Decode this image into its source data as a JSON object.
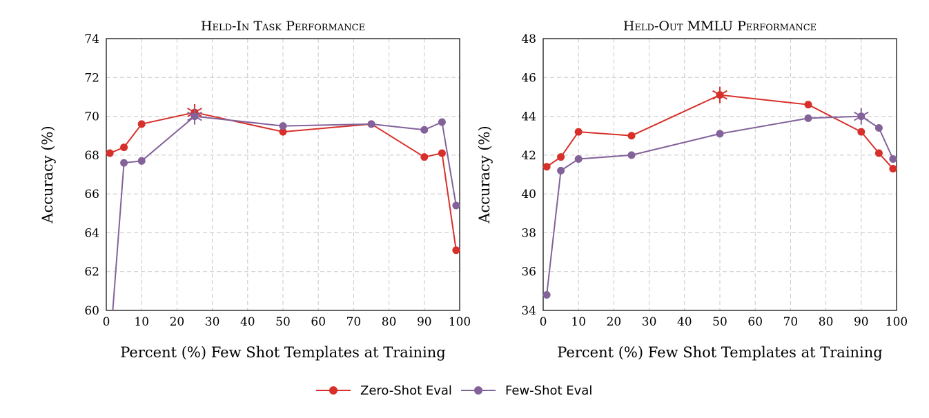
{
  "legend": {
    "zero_label": "Zero-Shot Eval",
    "few_label": "Few-Shot Eval"
  },
  "colors": {
    "zero": "#d7302a",
    "few": "#83629a"
  },
  "chart_data": [
    {
      "type": "line",
      "title": "Held-In Task Performance",
      "xlabel": "Percent (%) Few Shot Templates at Training",
      "ylabel": "Accuracy (%)",
      "xlim": [
        0,
        100
      ],
      "ylim": [
        60,
        74
      ],
      "xticks": [
        0,
        10,
        20,
        30,
        40,
        50,
        60,
        70,
        80,
        90,
        100
      ],
      "yticks": [
        60,
        62,
        64,
        66,
        68,
        70,
        72,
        74
      ],
      "grid": true,
      "series": [
        {
          "name": "Zero-Shot Eval",
          "color": "#d7302a",
          "x": [
            1,
            5,
            10,
            25,
            50,
            75,
            90,
            95,
            99
          ],
          "y": [
            68.1,
            68.4,
            69.6,
            70.2,
            69.2,
            69.6,
            67.9,
            68.1,
            63.1
          ],
          "best_index": 3
        },
        {
          "name": "Few-Shot Eval",
          "color": "#83629a",
          "x": [
            1,
            5,
            10,
            25,
            50,
            75,
            90,
            95,
            99
          ],
          "y": [
            58.0,
            67.6,
            67.7,
            70.0,
            69.5,
            69.6,
            69.3,
            69.7,
            65.4
          ],
          "best_index": 3
        }
      ]
    },
    {
      "type": "line",
      "title": "Held-Out MMLU Performance",
      "xlabel": "Percent (%) Few Shot Templates at Training",
      "ylabel": "Accuracy (%)",
      "xlim": [
        0,
        100
      ],
      "ylim": [
        34,
        48
      ],
      "xticks": [
        0,
        10,
        20,
        30,
        40,
        50,
        60,
        70,
        80,
        90,
        100
      ],
      "yticks": [
        34,
        36,
        38,
        40,
        42,
        44,
        46,
        48
      ],
      "grid": true,
      "series": [
        {
          "name": "Zero-Shot Eval",
          "color": "#d7302a",
          "x": [
            1,
            5,
            10,
            25,
            50,
            75,
            90,
            95,
            99
          ],
          "y": [
            41.4,
            41.9,
            43.2,
            43.0,
            45.1,
            44.6,
            43.2,
            42.1,
            41.3
          ],
          "best_index": 4
        },
        {
          "name": "Few-Shot Eval",
          "color": "#83629a",
          "x": [
            1,
            5,
            10,
            25,
            50,
            75,
            90,
            95,
            99
          ],
          "y": [
            34.8,
            41.2,
            41.8,
            42.0,
            43.1,
            43.9,
            44.0,
            43.4,
            41.8
          ],
          "best_index": 6
        }
      ]
    }
  ]
}
